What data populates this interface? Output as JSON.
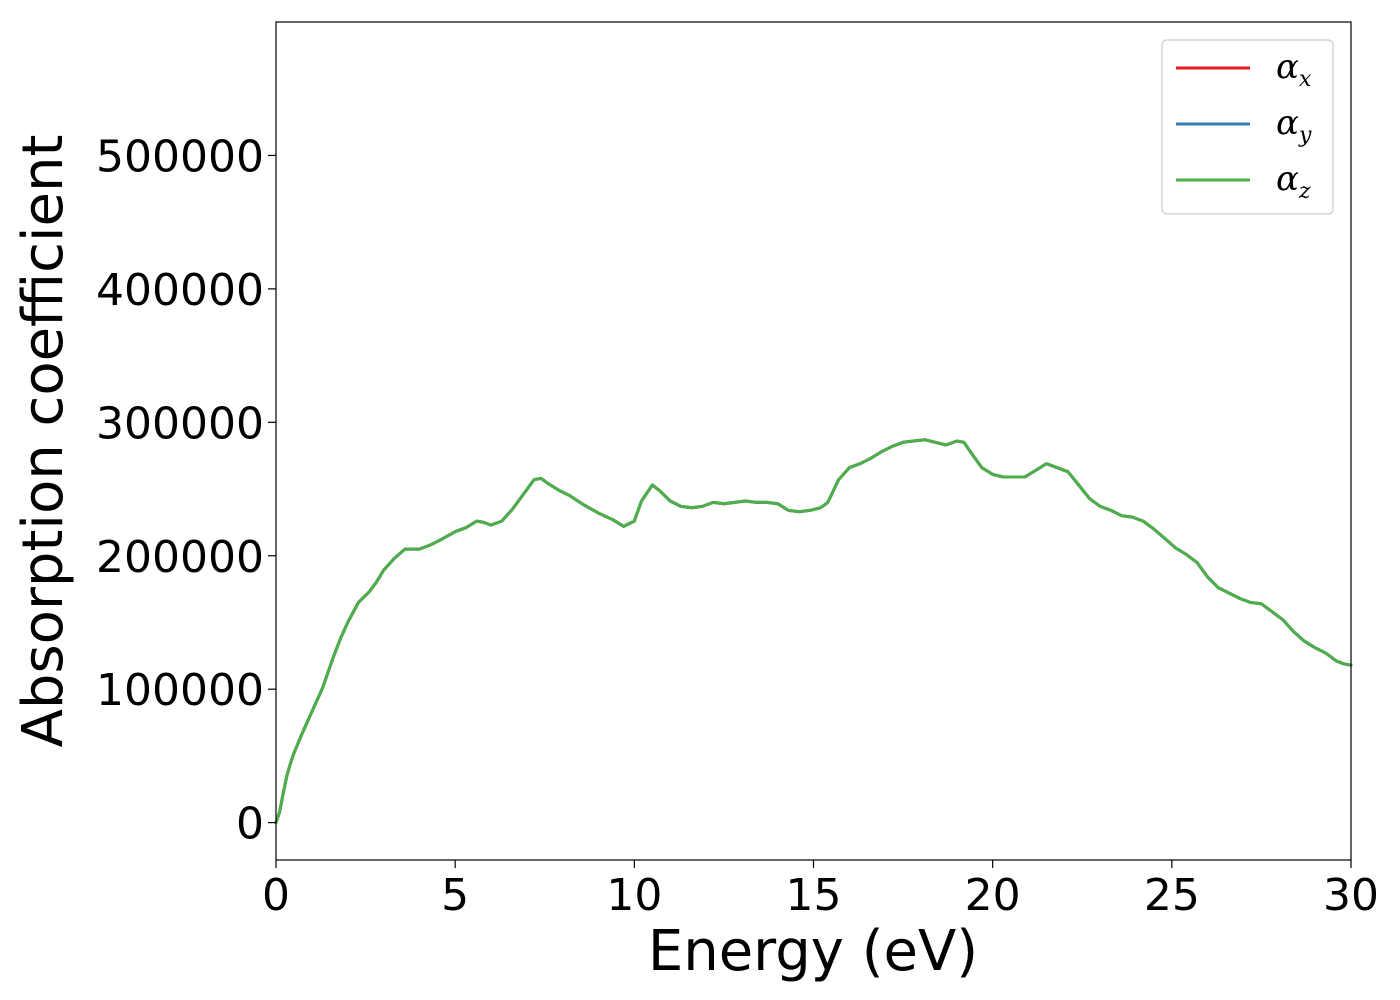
{
  "chart_data": {
    "type": "line",
    "xlabel": "Energy (eV)",
    "ylabel": "Absorption coefficient",
    "xlim": [
      0,
      30
    ],
    "ylim": [
      -28000,
      600000
    ],
    "xticks": [
      0,
      5,
      10,
      15,
      20,
      25,
      30
    ],
    "xtick_labels": [
      "0",
      "5",
      "10",
      "15",
      "20",
      "25",
      "30"
    ],
    "yticks": [
      0,
      100000,
      200000,
      300000,
      400000,
      500000
    ],
    "ytick_labels": [
      "0",
      "100000",
      "200000",
      "300000",
      "400000",
      "500000"
    ],
    "grid": false,
    "legend_position": "top-right",
    "x": [
      0,
      0.1,
      0.2,
      0.3,
      0.4,
      0.5,
      0.7,
      1.0,
      1.3,
      1.6,
      1.8,
      2.0,
      2.3,
      2.6,
      2.8,
      3.0,
      3.3,
      3.6,
      3.8,
      4.0,
      4.3,
      4.6,
      5.0,
      5.3,
      5.6,
      5.8,
      6.0,
      6.3,
      6.6,
      6.9,
      7.2,
      7.4,
      7.6,
      7.9,
      8.2,
      8.6,
      9.0,
      9.4,
      9.7,
      10.0,
      10.2,
      10.5,
      10.7,
      11.0,
      11.3,
      11.6,
      11.9,
      12.2,
      12.5,
      12.8,
      13.1,
      13.4,
      13.7,
      14.0,
      14.3,
      14.6,
      14.9,
      15.2,
      15.4,
      15.7,
      16.0,
      16.3,
      16.6,
      16.9,
      17.2,
      17.5,
      17.8,
      18.1,
      18.4,
      18.7,
      19.0,
      19.2,
      19.4,
      19.7,
      20.0,
      20.3,
      20.6,
      20.9,
      21.2,
      21.5,
      21.8,
      22.1,
      22.4,
      22.7,
      23.0,
      23.3,
      23.6,
      23.9,
      24.2,
      24.5,
      24.8,
      25.1,
      25.4,
      25.7,
      26.0,
      26.3,
      26.6,
      26.9,
      27.2,
      27.5,
      27.8,
      28.1,
      28.4,
      28.7,
      29.0,
      29.3,
      29.6,
      29.8,
      30.0
    ],
    "series": [
      {
        "name": "αx",
        "color": "#e41a1c",
        "values": [
          0,
          8000,
          22000,
          35000,
          44000,
          52000,
          65000,
          83000,
          101000,
          124000,
          138000,
          150000,
          165000,
          173000,
          180000,
          189000,
          198000,
          205000,
          205000,
          205000,
          208000,
          212000,
          218000,
          221000,
          226000,
          225000,
          223000,
          226000,
          235000,
          246000,
          257000,
          258000,
          254000,
          249000,
          245000,
          238000,
          232000,
          227000,
          222000,
          226000,
          241000,
          253000,
          249000,
          241000,
          237000,
          236000,
          237000,
          240000,
          239000,
          240000,
          241000,
          240000,
          240000,
          239000,
          234000,
          233000,
          234000,
          236000,
          240000,
          257000,
          266000,
          269000,
          273000,
          278000,
          282000,
          285000,
          286000,
          287000,
          285000,
          283000,
          286000,
          285000,
          277000,
          266000,
          261000,
          259000,
          259000,
          259000,
          264000,
          269000,
          266000,
          263000,
          253000,
          243000,
          237000,
          234000,
          230000,
          229000,
          226000,
          220000,
          213000,
          206000,
          201000,
          195000,
          184000,
          176000,
          172000,
          168000,
          165000,
          164000,
          158000,
          152000,
          143000,
          136000,
          131000,
          127000,
          121000,
          119000,
          118000
        ]
      },
      {
        "name": "αy",
        "color": "#377eb8",
        "values": [
          0,
          8000,
          22000,
          35000,
          44000,
          52000,
          65000,
          83000,
          101000,
          124000,
          138000,
          150000,
          165000,
          173000,
          180000,
          189000,
          198000,
          205000,
          205000,
          205000,
          208000,
          212000,
          218000,
          221000,
          226000,
          225000,
          223000,
          226000,
          235000,
          246000,
          257000,
          258000,
          254000,
          249000,
          245000,
          238000,
          232000,
          227000,
          222000,
          226000,
          241000,
          253000,
          249000,
          241000,
          237000,
          236000,
          237000,
          240000,
          239000,
          240000,
          241000,
          240000,
          240000,
          239000,
          234000,
          233000,
          234000,
          236000,
          240000,
          257000,
          266000,
          269000,
          273000,
          278000,
          282000,
          285000,
          286000,
          287000,
          285000,
          283000,
          286000,
          285000,
          277000,
          266000,
          261000,
          259000,
          259000,
          259000,
          264000,
          269000,
          266000,
          263000,
          253000,
          243000,
          237000,
          234000,
          230000,
          229000,
          226000,
          220000,
          213000,
          206000,
          201000,
          195000,
          184000,
          176000,
          172000,
          168000,
          165000,
          164000,
          158000,
          152000,
          143000,
          136000,
          131000,
          127000,
          121000,
          119000,
          118000
        ]
      },
      {
        "name": "αz",
        "color": "#4daf4a",
        "values": [
          0,
          8000,
          22000,
          35000,
          44000,
          52000,
          65000,
          83000,
          101000,
          124000,
          138000,
          150000,
          165000,
          173000,
          180000,
          189000,
          198000,
          205000,
          205000,
          205000,
          208000,
          212000,
          218000,
          221000,
          226000,
          225000,
          223000,
          226000,
          235000,
          246000,
          257000,
          258000,
          254000,
          249000,
          245000,
          238000,
          232000,
          227000,
          222000,
          226000,
          241000,
          253000,
          249000,
          241000,
          237000,
          236000,
          237000,
          240000,
          239000,
          240000,
          241000,
          240000,
          240000,
          239000,
          234000,
          233000,
          234000,
          236000,
          240000,
          257000,
          266000,
          269000,
          273000,
          278000,
          282000,
          285000,
          286000,
          287000,
          285000,
          283000,
          286000,
          285000,
          277000,
          266000,
          261000,
          259000,
          259000,
          259000,
          264000,
          269000,
          266000,
          263000,
          253000,
          243000,
          237000,
          234000,
          230000,
          229000,
          226000,
          220000,
          213000,
          206000,
          201000,
          195000,
          184000,
          176000,
          172000,
          168000,
          165000,
          164000,
          158000,
          152000,
          143000,
          136000,
          131000,
          127000,
          121000,
          119000,
          118000
        ]
      }
    ],
    "legend": [
      {
        "symbol": "α",
        "sub": "x",
        "color": "#e41a1c"
      },
      {
        "symbol": "α",
        "sub": "y",
        "color": "#377eb8"
      },
      {
        "symbol": "α",
        "sub": "z",
        "color": "#4daf4a"
      }
    ]
  }
}
